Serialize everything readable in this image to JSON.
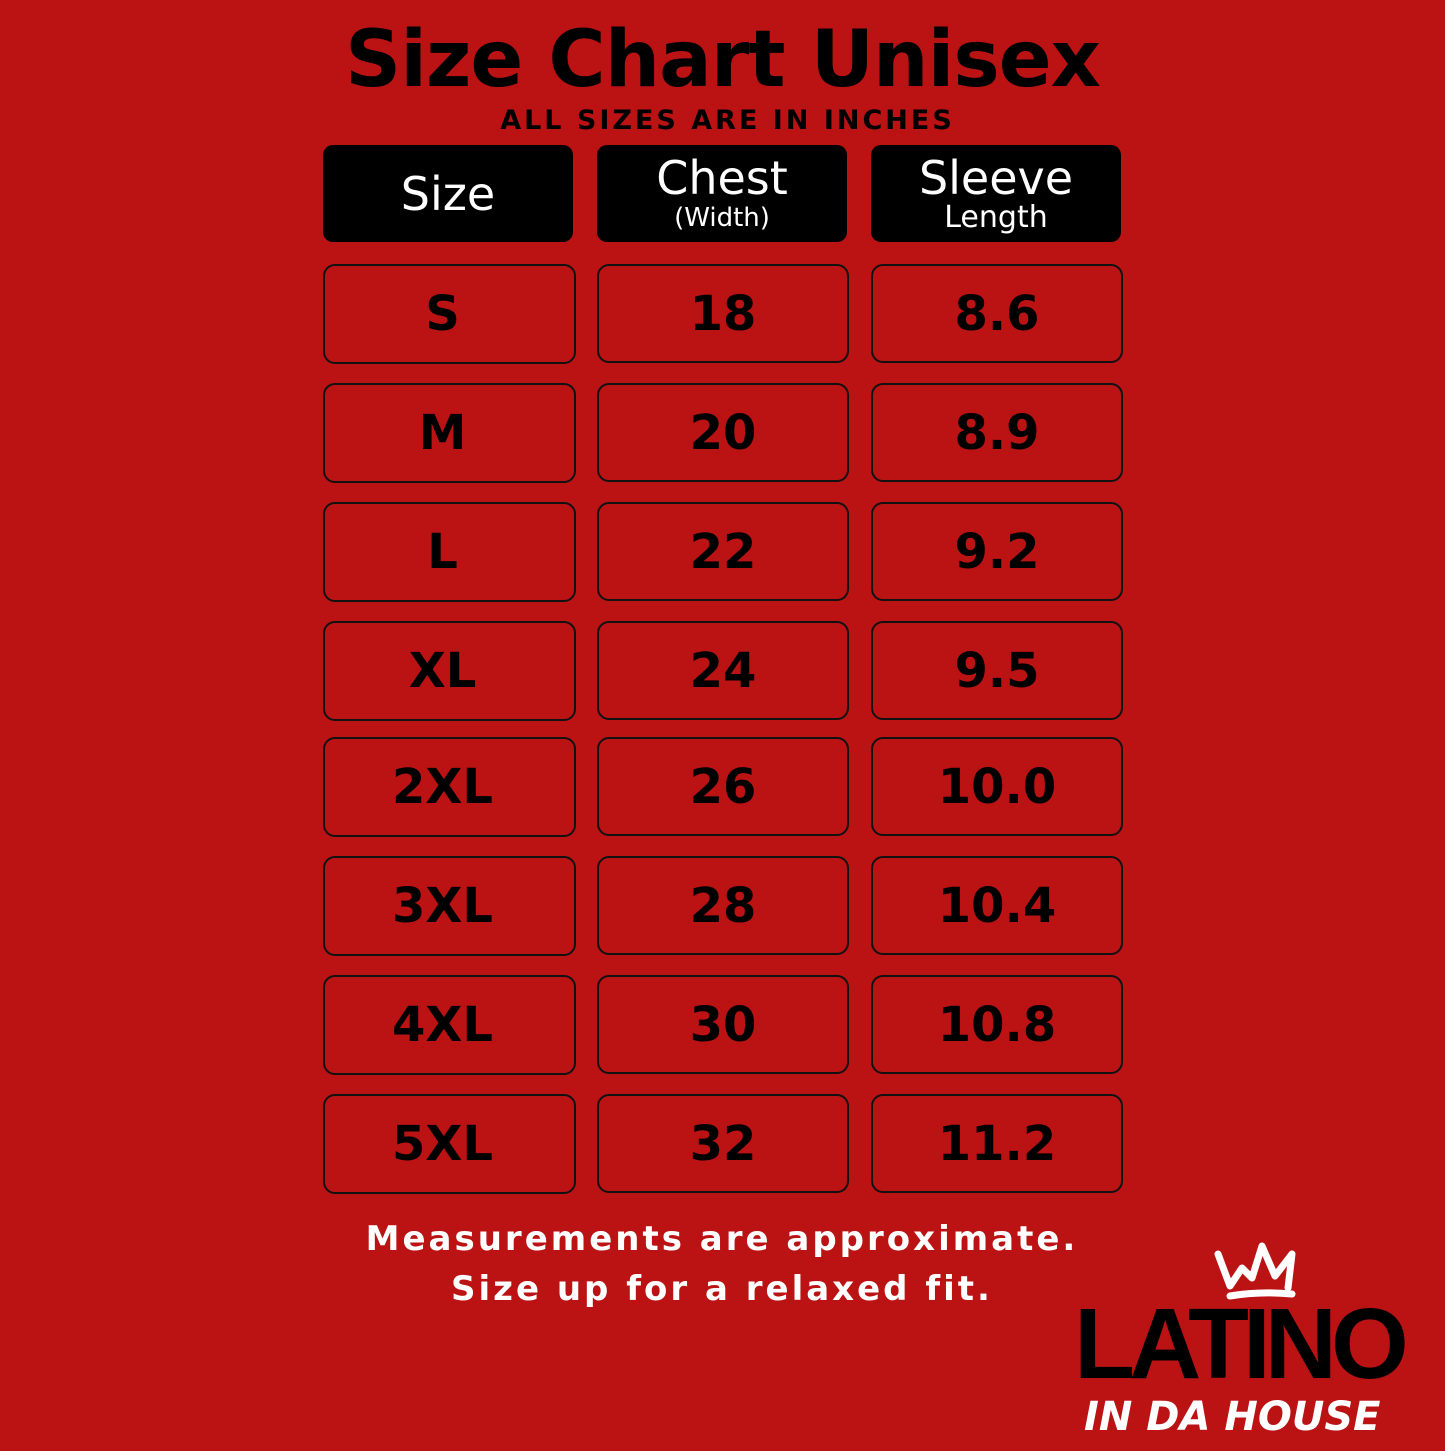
{
  "title": "Size Chart Unisex",
  "subtitle": "ALL SIZES ARE IN INCHES",
  "headers": [
    {
      "main": "Size",
      "sub": ""
    },
    {
      "main": "Chest",
      "sub": "(Width)"
    },
    {
      "main": "Sleeve",
      "sub": "Length"
    }
  ],
  "rows": [
    [
      "S",
      "18",
      "8.6"
    ],
    [
      "M",
      "20",
      "8.9"
    ],
    [
      "L",
      "22",
      "9.2"
    ],
    [
      "XL",
      "24",
      "9.5"
    ],
    [
      "2XL",
      "26",
      "10.0"
    ],
    [
      "3XL",
      "28",
      "10.4"
    ],
    [
      "4XL",
      "30",
      "10.8"
    ],
    [
      "5XL",
      "32",
      "11.2"
    ]
  ],
  "footer": {
    "line1": "Measurements are approximate.",
    "line2": "Size up for a relaxed fit."
  },
  "logo": {
    "top": "LATINO",
    "bottom": "IN DA HOUSE",
    "icon": "crown-icon"
  },
  "colors": {
    "background": "#bb1214",
    "header": "#000000",
    "text": "#000000",
    "footer": "#ffffff"
  }
}
